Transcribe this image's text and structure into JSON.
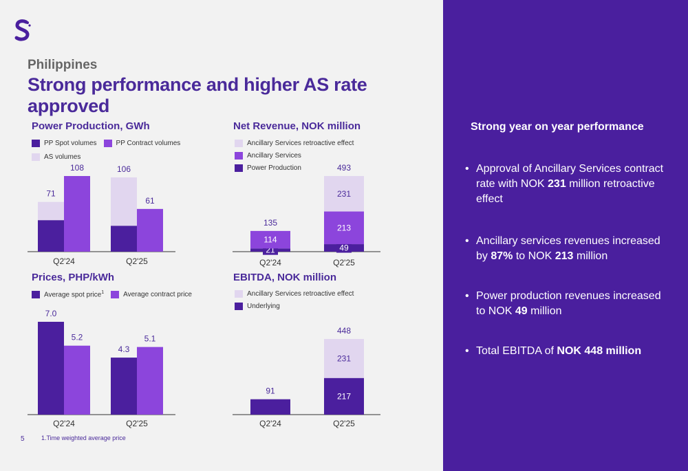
{
  "header": {
    "subtitle": "Philippines",
    "title": "Strong performance and higher AS rate approved"
  },
  "colors": {
    "dark": "#4b1f9e",
    "mid": "#8c45dc",
    "light": "#e1d6ef",
    "text": "#4a2a9a",
    "panel": "#4a1f9e"
  },
  "footer": {
    "page_number": "5",
    "footnote": "1.Time weighted average price"
  },
  "right_panel": {
    "heading": "Strong year on year performance",
    "bullets": [
      {
        "dot": "•",
        "parts": [
          {
            "t": "Approval of Ancillary Services contract rate with NOK ",
            "b": false
          },
          {
            "t": "231",
            "b": true
          },
          {
            "t": " million retroactive effect",
            "b": false
          }
        ]
      },
      {
        "dot": "•",
        "parts": [
          {
            "t": "Ancillary services revenues increased by ",
            "b": false
          },
          {
            "t": "87%",
            "b": true
          },
          {
            "t": " to NOK ",
            "b": false
          },
          {
            "t": "213",
            "b": true
          },
          {
            "t": " million",
            "b": false
          }
        ]
      },
      {
        "dot": "•",
        "parts": [
          {
            "t": "Power production revenues increased to NOK ",
            "b": false
          },
          {
            "t": "49",
            "b": true
          },
          {
            "t": " million",
            "b": false
          }
        ]
      },
      {
        "dot": "•",
        "parts": [
          {
            "t": "Total EBITDA of ",
            "b": false
          },
          {
            "t": "NOK 448 million",
            "b": true
          }
        ]
      }
    ]
  },
  "chart_data": [
    {
      "id": "power",
      "type": "bar",
      "title": "Power Production, GWh",
      "legend": [
        {
          "label": "PP Spot volumes",
          "color": "#4b1f9e"
        },
        {
          "label": "PP Contract volumes",
          "color": "#8c45dc"
        },
        {
          "label": "AS volumes",
          "color": "#e1d6ef"
        }
      ],
      "categories": [
        "Q2'24",
        "Q2'25"
      ],
      "groups": [
        {
          "category": "Q2'24",
          "bars": [
            {
              "stack": [
                {
                  "series": "PP Spot volumes",
                  "value": 45
                },
                {
                  "series": "AS volumes",
                  "value": 26
                }
              ],
              "total": 71,
              "total_label": "71"
            },
            {
              "stack": [
                {
                  "series": "PP Contract volumes",
                  "value": 108
                }
              ],
              "total": 108,
              "total_label": "108"
            }
          ]
        },
        {
          "category": "Q2'25",
          "bars": [
            {
              "stack": [
                {
                  "series": "PP Spot volumes",
                  "value": 37
                },
                {
                  "series": "AS volumes",
                  "value": 69
                }
              ],
              "total": 106,
              "total_label": "106"
            },
            {
              "stack": [
                {
                  "series": "PP Contract volumes",
                  "value": 61
                }
              ],
              "total": 61,
              "total_label": "61"
            }
          ]
        }
      ],
      "ymax": 108
    },
    {
      "id": "prices",
      "type": "bar",
      "title": "Prices, PHP/kWh",
      "legend": [
        {
          "label": "Average spot price",
          "sup": "1",
          "color": "#4b1f9e"
        },
        {
          "label": "Average contract price",
          "color": "#8c45dc"
        }
      ],
      "categories": [
        "Q2'24",
        "Q2'25"
      ],
      "groups": [
        {
          "category": "Q2'24",
          "bars": [
            {
              "stack": [
                {
                  "series": "Average spot price",
                  "value": 7.0
                }
              ],
              "total": 7.0,
              "total_label": "7.0"
            },
            {
              "stack": [
                {
                  "series": "Average contract price",
                  "value": 5.2
                }
              ],
              "total": 5.2,
              "total_label": "5.2"
            }
          ]
        },
        {
          "category": "Q2'25",
          "bars": [
            {
              "stack": [
                {
                  "series": "Average spot price",
                  "value": 4.3
                }
              ],
              "total": 4.3,
              "total_label": "4.3"
            },
            {
              "stack": [
                {
                  "series": "Average contract price",
                  "value": 5.1
                }
              ],
              "total": 5.1,
              "total_label": "5.1"
            }
          ]
        }
      ],
      "ymax": 7.0
    },
    {
      "id": "revenue",
      "type": "bar",
      "title": "Net Revenue, NOK million",
      "legend": [
        {
          "label": "Ancillary Services retroactive effect",
          "color": "#e1d6ef"
        },
        {
          "label": "Ancillary Services",
          "color": "#8c45dc"
        },
        {
          "label": "Power Production",
          "color": "#4b1f9e"
        }
      ],
      "categories": [
        "Q2'24",
        "Q2'25"
      ],
      "groups": [
        {
          "category": "Q2'24",
          "bars": [
            {
              "stack": [
                {
                  "series": "Power Production",
                  "value": 21,
                  "label": "21"
                },
                {
                  "series": "Ancillary Services",
                  "value": 114,
                  "label": "114"
                }
              ],
              "total": 135,
              "total_label": "135"
            }
          ]
        },
        {
          "category": "Q2'25",
          "bars": [
            {
              "stack": [
                {
                  "series": "Power Production",
                  "value": 49,
                  "label": "49"
                },
                {
                  "series": "Ancillary Services",
                  "value": 213,
                  "label": "213"
                },
                {
                  "series": "Ancillary Services retroactive effect",
                  "value": 231,
                  "label": "231"
                }
              ],
              "total": 493,
              "total_label": "493"
            }
          ]
        }
      ],
      "ymax": 493
    },
    {
      "id": "ebitda",
      "type": "bar",
      "title": "EBITDA, NOK million",
      "legend": [
        {
          "label": "Ancillary Services retroactive effect",
          "color": "#e1d6ef"
        },
        {
          "label": "Underlying",
          "color": "#4b1f9e"
        }
      ],
      "categories": [
        "Q2'24",
        "Q2'25"
      ],
      "groups": [
        {
          "category": "Q2'24",
          "bars": [
            {
              "stack": [
                {
                  "series": "Underlying",
                  "value": 91
                }
              ],
              "total": 91,
              "total_label": "91"
            }
          ]
        },
        {
          "category": "Q2'25",
          "bars": [
            {
              "stack": [
                {
                  "series": "Underlying",
                  "value": 217,
                  "label": "217"
                },
                {
                  "series": "Ancillary Services retroactive effect",
                  "value": 231,
                  "label": "231"
                }
              ],
              "total": 448,
              "total_label": "448"
            }
          ]
        }
      ],
      "ymax": 448
    }
  ]
}
